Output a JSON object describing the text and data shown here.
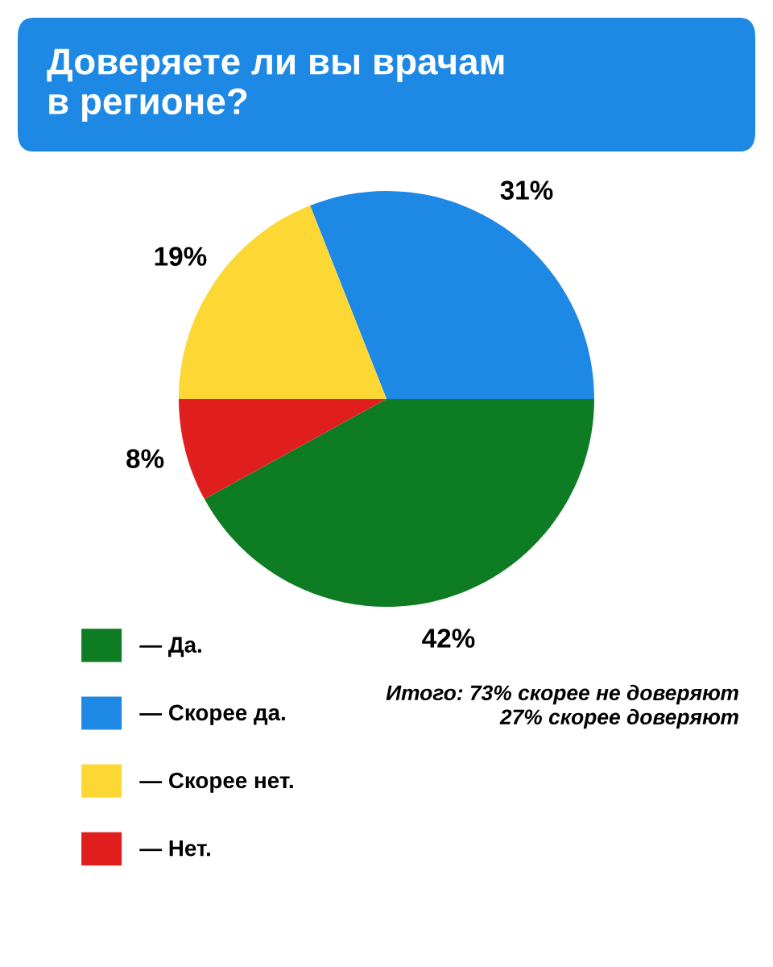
{
  "chart_data": {
    "type": "pie",
    "title": "Доверяете ли вы врачам\nв регионе?",
    "categories": [
      "— Да.",
      "— Скорее да.",
      "— Скорее нет.",
      "— Нет."
    ],
    "values": [
      42,
      31,
      19,
      8
    ],
    "colors": [
      "#0d7c23",
      "#1e88e5",
      "#fdd835",
      "#e01e1e"
    ],
    "value_labels": [
      "42%",
      "31%",
      "19%",
      "8%"
    ],
    "legend": "bottom left",
    "annotations": [
      "Итого: 73% скорее не доверяют",
      "27% скорее доверяют"
    ]
  }
}
